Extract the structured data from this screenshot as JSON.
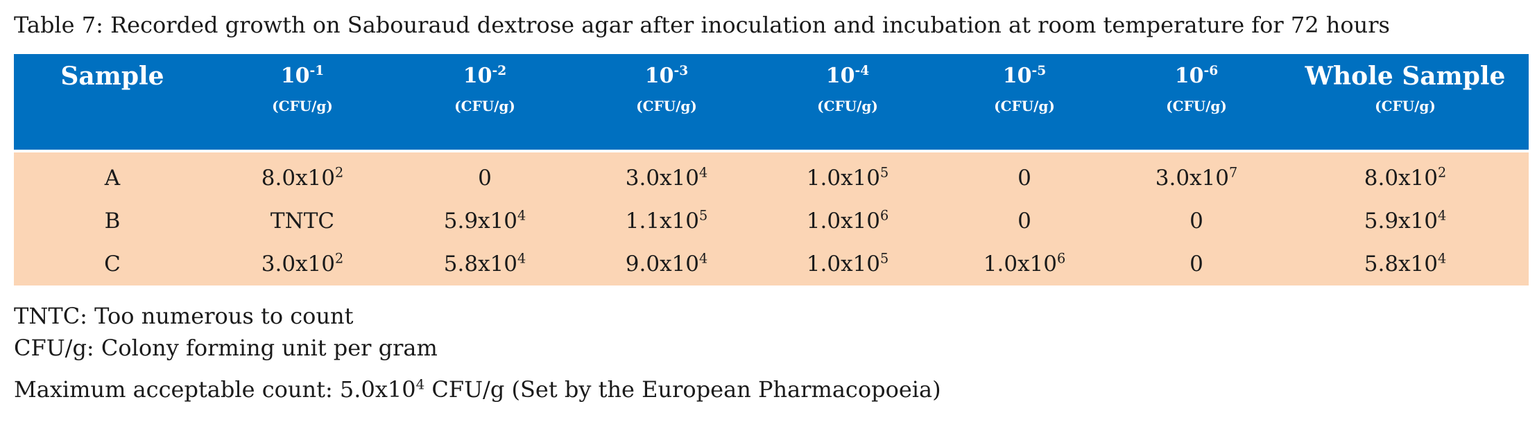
{
  "caption": "Table 7: Recorded growth on Sabouraud dextrose agar after inoculation and incubation at room temperature for 72 hours",
  "table": {
    "headers": [
      {
        "base": "Sample",
        "exp": "",
        "unit": ""
      },
      {
        "base": "10",
        "exp": "-1",
        "unit": "(CFU/g)"
      },
      {
        "base": "10",
        "exp": "-2",
        "unit": "(CFU/g)"
      },
      {
        "base": "10",
        "exp": "-3",
        "unit": "(CFU/g)"
      },
      {
        "base": "10",
        "exp": "-4",
        "unit": "(CFU/g)"
      },
      {
        "base": "10",
        "exp": "-5",
        "unit": "(CFU/g)"
      },
      {
        "base": "10",
        "exp": "-6",
        "unit": "(CFU/g)"
      },
      {
        "base": "Whole Sample",
        "exp": "",
        "unit": "(CFU/g)"
      }
    ],
    "rows": [
      [
        {
          "base": "A",
          "exp": ""
        },
        {
          "base": "8.0x10",
          "exp": "2"
        },
        {
          "base": "0",
          "exp": ""
        },
        {
          "base": "3.0x10",
          "exp": "4"
        },
        {
          "base": "1.0x10",
          "exp": "5"
        },
        {
          "base": "0",
          "exp": ""
        },
        {
          "base": "3.0x10",
          "exp": "7"
        },
        {
          "base": "8.0x10",
          "exp": "2"
        }
      ],
      [
        {
          "base": "B",
          "exp": ""
        },
        {
          "base": "TNTC",
          "exp": ""
        },
        {
          "base": "5.9x10",
          "exp": "4"
        },
        {
          "base": "1.1x10",
          "exp": "5"
        },
        {
          "base": "1.0x10",
          "exp": "6"
        },
        {
          "base": "0",
          "exp": ""
        },
        {
          "base": "0",
          "exp": ""
        },
        {
          "base": "5.9x10",
          "exp": "4"
        }
      ],
      [
        {
          "base": "C",
          "exp": ""
        },
        {
          "base": "3.0x10",
          "exp": "2"
        },
        {
          "base": "5.8x10",
          "exp": "4"
        },
        {
          "base": "9.0x10",
          "exp": "4"
        },
        {
          "base": "1.0x10",
          "exp": "5"
        },
        {
          "base": "1.0x10",
          "exp": "6"
        },
        {
          "base": "0",
          "exp": ""
        },
        {
          "base": "5.8x10",
          "exp": "4"
        }
      ]
    ]
  },
  "notes": {
    "tntc": "TNTC: Too numerous to count",
    "cfu": "CFU/g: Colony forming unit per gram",
    "max_prefix": "Maximum acceptable count: 5.0x10",
    "max_exp": "4",
    "max_suffix": " CFU/g (Set by the European Pharmacopoeia)"
  },
  "colors": {
    "header_bg": "#0070c0",
    "header_text": "#ffffff",
    "row_bg": "#fbd5b5"
  }
}
